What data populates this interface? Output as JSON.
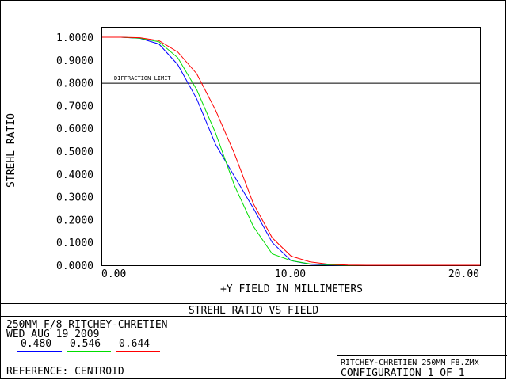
{
  "chart_data": {
    "type": "line",
    "title": "STREHL RATIO VS FIELD",
    "xlabel": "+Y FIELD IN MILLIMETERS",
    "ylabel": "STREHL RATIO",
    "xlim": [
      0,
      20
    ],
    "ylim": [
      0,
      1
    ],
    "x_ticks": [
      0,
      10,
      20
    ],
    "x_tick_labels": [
      "0.00",
      "10.00",
      "20.00"
    ],
    "y_ticks": [
      0,
      0.1,
      0.2,
      0.3,
      0.4,
      0.5,
      0.6,
      0.7,
      0.8,
      0.9,
      1.0
    ],
    "y_tick_labels": [
      "0.0000",
      "0.1000",
      "0.2000",
      "0.3000",
      "0.4000",
      "0.5000",
      "0.6000",
      "0.7000",
      "0.8000",
      "0.9000",
      "1.0000"
    ],
    "reference_line": {
      "label": "DIFFRACTION LIMIT",
      "y": 0.8
    },
    "grid": false,
    "series": [
      {
        "name": "0.480",
        "color": "#0000ff",
        "x": [
          0,
          1,
          2,
          3,
          4,
          5,
          6,
          7,
          8,
          9,
          10,
          11,
          12,
          13,
          14,
          15,
          16,
          17,
          18,
          19,
          20
        ],
        "y": [
          1.0,
          1.0,
          0.995,
          0.97,
          0.88,
          0.73,
          0.53,
          0.39,
          0.25,
          0.1,
          0.02,
          0.004,
          0.001,
          0,
          0,
          0,
          0,
          0,
          0,
          0,
          0
        ]
      },
      {
        "name": "0.546",
        "color": "#00dd00",
        "x": [
          0,
          1,
          2,
          3,
          4,
          5,
          6,
          7,
          8,
          9,
          10,
          11,
          12,
          13,
          14,
          15,
          16,
          17,
          18,
          19,
          20
        ],
        "y": [
          1.0,
          1.0,
          0.996,
          0.98,
          0.91,
          0.77,
          0.58,
          0.35,
          0.17,
          0.05,
          0.02,
          0.006,
          0.002,
          0,
          0,
          0,
          0,
          0,
          0,
          0,
          0
        ]
      },
      {
        "name": "0.644",
        "color": "#ff0000",
        "x": [
          0,
          1,
          2,
          3,
          4,
          5,
          6,
          7,
          8,
          9,
          10,
          11,
          12,
          13,
          14,
          15,
          16,
          17,
          18,
          19,
          20
        ],
        "y": [
          1.0,
          1.0,
          0.998,
          0.985,
          0.935,
          0.84,
          0.68,
          0.49,
          0.27,
          0.12,
          0.04,
          0.015,
          0.004,
          0.001,
          0,
          0,
          0,
          0,
          0,
          0,
          0
        ]
      }
    ]
  },
  "footer": {
    "system_line": "250MM F/8 RITCHEY-CHRETIEN",
    "date_line": "WED AUG 19 2009",
    "reference": "REFERENCE: CENTROID",
    "file_name": "RITCHEY-CHRETIEN 250MM F8.ZMX",
    "configuration": "CONFIGURATION 1 OF 1"
  }
}
